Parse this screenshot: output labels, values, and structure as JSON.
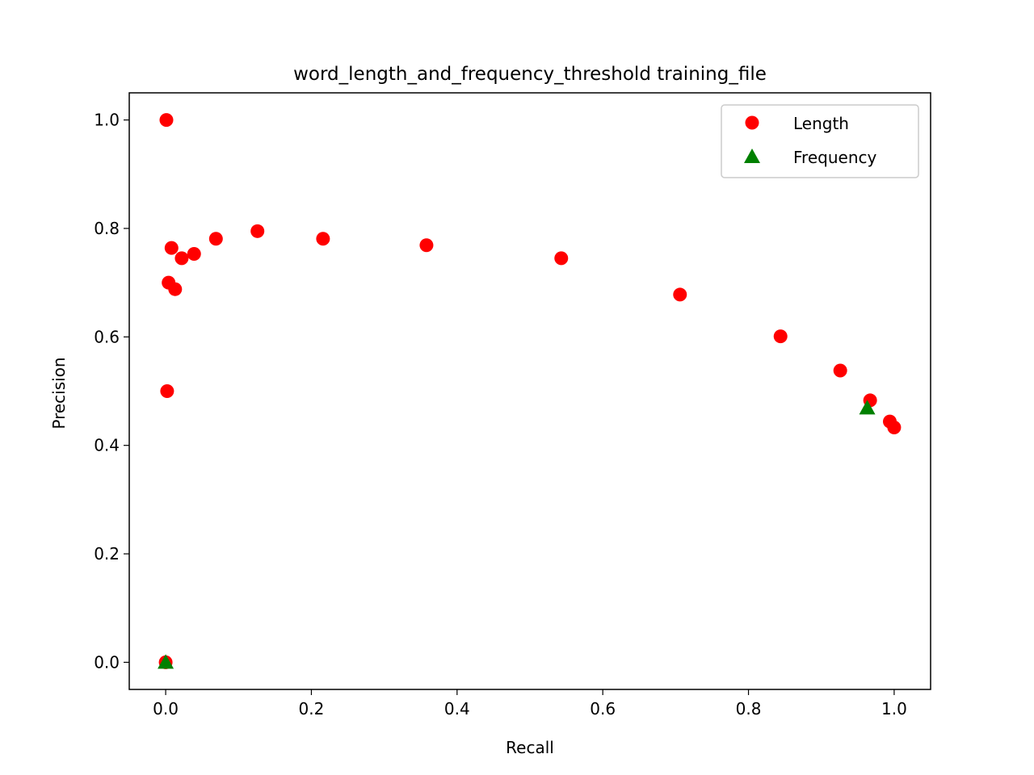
{
  "chart_data": {
    "type": "scatter",
    "title": "word_length_and_frequency_threshold training_file",
    "xlabel": "Recall",
    "ylabel": "Precision",
    "xlim": [
      -0.05,
      1.05
    ],
    "ylim": [
      -0.05,
      1.05
    ],
    "xticks": [
      0.0,
      0.2,
      0.4,
      0.6,
      0.8,
      1.0
    ],
    "yticks": [
      0.0,
      0.2,
      0.4,
      0.6,
      0.8,
      1.0
    ],
    "xtick_labels": [
      "0.0",
      "0.2",
      "0.4",
      "0.6",
      "0.8",
      "1.0"
    ],
    "ytick_labels": [
      "0.0",
      "0.2",
      "0.4",
      "0.6",
      "0.8",
      "1.0"
    ],
    "grid": false,
    "legend_position": "top-right",
    "series": [
      {
        "name": "Length",
        "marker": "circle",
        "color": "#ff0000",
        "points": [
          {
            "x": 0.0,
            "y": 0.0
          },
          {
            "x": 0.001,
            "y": 1.0
          },
          {
            "x": 0.002,
            "y": 0.5
          },
          {
            "x": 0.004,
            "y": 0.7
          },
          {
            "x": 0.008,
            "y": 0.764
          },
          {
            "x": 0.013,
            "y": 0.688
          },
          {
            "x": 0.022,
            "y": 0.745
          },
          {
            "x": 0.039,
            "y": 0.753
          },
          {
            "x": 0.069,
            "y": 0.781
          },
          {
            "x": 0.126,
            "y": 0.795
          },
          {
            "x": 0.216,
            "y": 0.781
          },
          {
            "x": 0.358,
            "y": 0.769
          },
          {
            "x": 0.543,
            "y": 0.745
          },
          {
            "x": 0.706,
            "y": 0.678
          },
          {
            "x": 0.844,
            "y": 0.601
          },
          {
            "x": 0.926,
            "y": 0.538
          },
          {
            "x": 0.967,
            "y": 0.483
          },
          {
            "x": 0.994,
            "y": 0.444
          },
          {
            "x": 1.0,
            "y": 0.433
          }
        ]
      },
      {
        "name": "Frequency",
        "marker": "triangle",
        "color": "#008000",
        "points": [
          {
            "x": 0.0,
            "y": 0.0
          },
          {
            "x": 0.963,
            "y": 0.469
          }
        ]
      }
    ]
  }
}
